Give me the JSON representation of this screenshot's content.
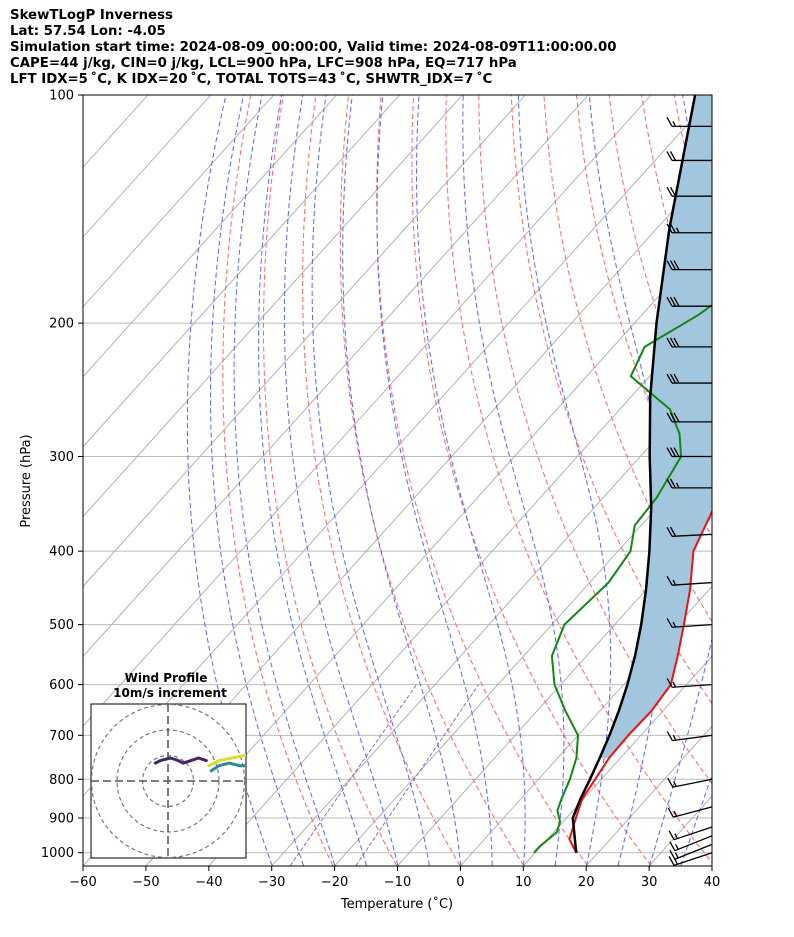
{
  "header": {
    "line1": "SkewTLogP Inverness",
    "line2": "Lat: 57.54   Lon: -4.05",
    "line3": "Simulation start time: 2024-08-09_00:00:00, Valid time: 2024-08-09T11:00:00.00",
    "line4": "CAPE=44 j/kg, CIN=0 j/kg, LCL=900 hPa, LFC=908 hPa, EQ=717 hPa",
    "line5": "LFT IDX=5 ˚C, K IDX=20 ˚C, TOTAL TOTS=43 ˚C, SHWTR_IDX=7 ˚C"
  },
  "colors": {
    "temperature": "#ee1111",
    "dewpoint": "#118811",
    "parcel": "#000000",
    "cape_fill": "#a3c6df",
    "dry_adiabat": "#ff6666",
    "moist_adiabat": "#5566ff",
    "mixing_ratio": "#9966cc",
    "isotherm": "#aaaaaa",
    "isobar": "#bbbbbb"
  },
  "chart_data": {
    "type": "line",
    "xlabel": "Temperature (˚C)",
    "ylabel": "Pressure (hPa)",
    "xlim": [
      -60,
      40
    ],
    "ylim": [
      1040,
      100
    ],
    "y_scale": "log",
    "grid": true,
    "x_ticks": [
      -60,
      -50,
      -40,
      -30,
      -20,
      -10,
      0,
      10,
      20,
      30,
      40
    ],
    "y_ticks": [
      100,
      200,
      300,
      400,
      500,
      600,
      700,
      800,
      900,
      1000
    ],
    "series": [
      {
        "role": "temperature",
        "points": [
          [
            1000,
            16.5
          ],
          [
            960,
            13.5
          ],
          [
            900,
            11.5
          ],
          [
            850,
            9.8
          ],
          [
            800,
            9.0
          ],
          [
            750,
            8.2
          ],
          [
            700,
            8.0
          ],
          [
            650,
            8.2
          ],
          [
            600,
            7.5
          ],
          [
            550,
            4.5
          ],
          [
            500,
            1.0
          ],
          [
            450,
            -3.0
          ],
          [
            400,
            -8.0
          ],
          [
            350,
            -11.0
          ],
          [
            310,
            -12.5
          ],
          [
            290,
            -11.5
          ],
          [
            270,
            -9.0
          ],
          [
            250,
            -5.5
          ],
          [
            230,
            -2.0
          ],
          [
            210,
            0.5
          ],
          [
            190,
            2.5
          ],
          [
            170,
            3.5
          ],
          [
            150,
            5.5
          ],
          [
            130,
            9.0
          ],
          [
            115,
            11.5
          ],
          [
            100,
            14.5
          ]
        ]
      },
      {
        "role": "dewpoint",
        "points": [
          [
            1000,
            9.8
          ],
          [
            980,
            9.8
          ],
          [
            940,
            10.5
          ],
          [
            910,
            9.5
          ],
          [
            880,
            7.5
          ],
          [
            850,
            6.5
          ],
          [
            800,
            5.0
          ],
          [
            750,
            3.0
          ],
          [
            700,
            0.0
          ],
          [
            650,
            -5.5
          ],
          [
            600,
            -11.0
          ],
          [
            550,
            -15.5
          ],
          [
            500,
            -18.0
          ],
          [
            470,
            -17.5
          ],
          [
            440,
            -17.0
          ],
          [
            400,
            -18.0
          ],
          [
            370,
            -21.0
          ],
          [
            340,
            -21.5
          ],
          [
            300,
            -23.5
          ],
          [
            280,
            -27.0
          ],
          [
            260,
            -32.0
          ],
          [
            235,
            -43.0
          ],
          [
            215,
            -45.0
          ],
          [
            195,
            -41.0
          ],
          [
            180,
            -39.0
          ],
          [
            160,
            -36.0
          ],
          [
            140,
            -32.5
          ],
          [
            120,
            -28.0
          ],
          [
            100,
            -23.0
          ]
        ]
      },
      {
        "role": "parcel",
        "points": [
          [
            1000,
            16.5
          ],
          [
            900,
            11.0
          ],
          [
            850,
            9.5
          ],
          [
            800,
            8.2
          ],
          [
            750,
            6.7
          ],
          [
            700,
            5.0
          ],
          [
            650,
            3.0
          ],
          [
            600,
            0.6
          ],
          [
            550,
            -2.3
          ],
          [
            500,
            -5.8
          ],
          [
            450,
            -10.0
          ],
          [
            400,
            -15.0
          ],
          [
            350,
            -21.0
          ],
          [
            300,
            -28.5
          ],
          [
            250,
            -37.0
          ],
          [
            200,
            -46.5
          ],
          [
            150,
            -58.0
          ],
          [
            100,
            -73.0
          ]
        ]
      }
    ],
    "dry_adiabats_theta_K": [
      250,
      260,
      270,
      280,
      290,
      300,
      310,
      320,
      330,
      340,
      350,
      360,
      370,
      380,
      390,
      400,
      410,
      420,
      430,
      440,
      450,
      460,
      470,
      480,
      490,
      500
    ],
    "moist_adiabats_start_C": [
      -30,
      -25,
      -20,
      -15,
      -10,
      -5,
      0,
      5,
      10,
      15,
      20,
      25,
      30,
      35
    ],
    "mixing_ratio_lines_gkg": [
      0.4,
      1
    ],
    "wind_barbs": [
      {
        "p": 1000,
        "u": 15,
        "v": 5
      },
      {
        "p": 975,
        "u": 15,
        "v": 6
      },
      {
        "p": 950,
        "u": 15,
        "v": 6
      },
      {
        "p": 925,
        "u": 15,
        "v": 5
      },
      {
        "p": 870,
        "u": 15,
        "v": 4
      },
      {
        "p": 800,
        "u": 15,
        "v": 3
      },
      {
        "p": 700,
        "u": 15,
        "v": 2
      },
      {
        "p": 600,
        "u": 15,
        "v": 1
      },
      {
        "p": 500,
        "u": 15,
        "v": 1
      },
      {
        "p": 440,
        "u": 15,
        "v": 1
      },
      {
        "p": 380,
        "u": 20,
        "v": 1
      },
      {
        "p": 330,
        "u": 25,
        "v": 0
      },
      {
        "p": 300,
        "u": 30,
        "v": 0
      },
      {
        "p": 270,
        "u": 30,
        "v": 0
      },
      {
        "p": 240,
        "u": 30,
        "v": 0
      },
      {
        "p": 215,
        "u": 30,
        "v": 0
      },
      {
        "p": 190,
        "u": 30,
        "v": 0
      },
      {
        "p": 170,
        "u": 30,
        "v": 0
      },
      {
        "p": 152,
        "u": 25,
        "v": 0
      },
      {
        "p": 136,
        "u": 20,
        "v": 0
      },
      {
        "p": 122,
        "u": 20,
        "v": 0
      },
      {
        "p": 110,
        "u": 15,
        "v": 0
      }
    ],
    "hodograph": {
      "title_line1": "Wind Profile",
      "title_line2": "10m/s increment",
      "rings": 3,
      "segments": [
        {
          "color": "#3d2a6b",
          "points": [
            [
              -5,
              7
            ],
            [
              -3,
              8
            ],
            [
              1,
              9
            ],
            [
              4,
              8
            ],
            [
              6,
              7
            ]
          ]
        },
        {
          "color": "#4b1d6b",
          "points": [
            [
              6,
              7
            ],
            [
              9,
              8
            ],
            [
              12,
              9
            ],
            [
              15,
              8
            ]
          ]
        },
        {
          "color": "#2c8c8f",
          "points": [
            [
              17,
              4
            ],
            [
              20,
              6
            ],
            [
              24,
              7
            ],
            [
              28,
              6
            ],
            [
              32,
              6
            ]
          ]
        },
        {
          "color": "#d8df30",
          "points": [
            [
              16,
              6
            ],
            [
              20,
              8
            ],
            [
              25,
              9
            ],
            [
              30,
              10
            ],
            [
              34,
              10
            ]
          ]
        }
      ]
    }
  }
}
